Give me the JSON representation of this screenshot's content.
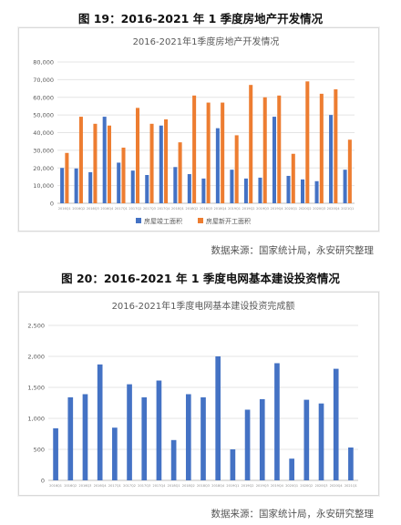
{
  "fig19": {
    "heading": "图 19：2016-2021 年 1 季度房地产开发情况",
    "source": "数据来源：国家统计局，永安研究整理"
  },
  "fig20": {
    "heading": "图 20：2016-2021 年 1 季度电网基本建设投资情况",
    "source": "数据来源：国家统计局，永安研究整理"
  },
  "chart_data": [
    {
      "type": "bar",
      "title": "2016-2021年1季度房地产开发情况",
      "categories": [
        "2016Q1",
        "2016Q2",
        "2016Q3",
        "2016Q4",
        "2017Q1",
        "2017Q2",
        "2017Q3",
        "2017Q4",
        "2018Q1",
        "2018Q2",
        "2018Q3",
        "2018Q4",
        "2019Q1",
        "2019Q2",
        "2019Q3",
        "2019Q4",
        "2020Q1",
        "2020Q2",
        "2020Q3",
        "2020Q4",
        "2021Q1"
      ],
      "series": [
        {
          "name": "房屋竣工面积",
          "color": "#4472c4",
          "values": [
            20000,
            19700,
            17600,
            49000,
            23000,
            18500,
            16000,
            44000,
            20500,
            16500,
            14000,
            42500,
            19000,
            14000,
            14500,
            49000,
            15500,
            13500,
            12500,
            50000,
            19000
          ]
        },
        {
          "name": "房屋新开工面积",
          "color": "#ed7d31",
          "values": [
            28500,
            49000,
            45000,
            44000,
            31500,
            54000,
            45000,
            47500,
            34500,
            61000,
            57000,
            57000,
            38500,
            67000,
            60000,
            61000,
            28000,
            69000,
            62000,
            64500,
            36000
          ]
        }
      ],
      "yticks": [
        "0",
        "10,000",
        "20,000",
        "30,000",
        "40,000",
        "50,000",
        "60,000",
        "70,000",
        "80,000"
      ],
      "ylim": [
        0,
        80000
      ],
      "legend": "bottom"
    },
    {
      "type": "bar",
      "title": "2016-2021年1季度电网基本建设投资完成额",
      "categories": [
        "2016Q1",
        "2016Q2",
        "2016Q3",
        "2016Q4",
        "2017Q1",
        "2017Q2",
        "2017Q3",
        "2017Q4",
        "2018Q1",
        "2018Q2",
        "2018Q3",
        "2018Q4",
        "2019Q1",
        "2019Q2",
        "2019Q3",
        "2019Q4",
        "2020Q1",
        "2020Q2",
        "2020Q3",
        "2020Q4",
        "2021Q1"
      ],
      "series": [
        {
          "color": "#4472c4",
          "values": [
            840,
            1340,
            1390,
            1870,
            850,
            1550,
            1340,
            1610,
            650,
            1390,
            1340,
            2000,
            500,
            1140,
            1310,
            1890,
            350,
            1300,
            1240,
            1800,
            530
          ]
        }
      ],
      "yticks": [
        "0",
        "500",
        "1,000",
        "1,500",
        "2,000",
        "2,500"
      ],
      "ylim": [
        0,
        2500
      ],
      "legend": "none"
    }
  ]
}
